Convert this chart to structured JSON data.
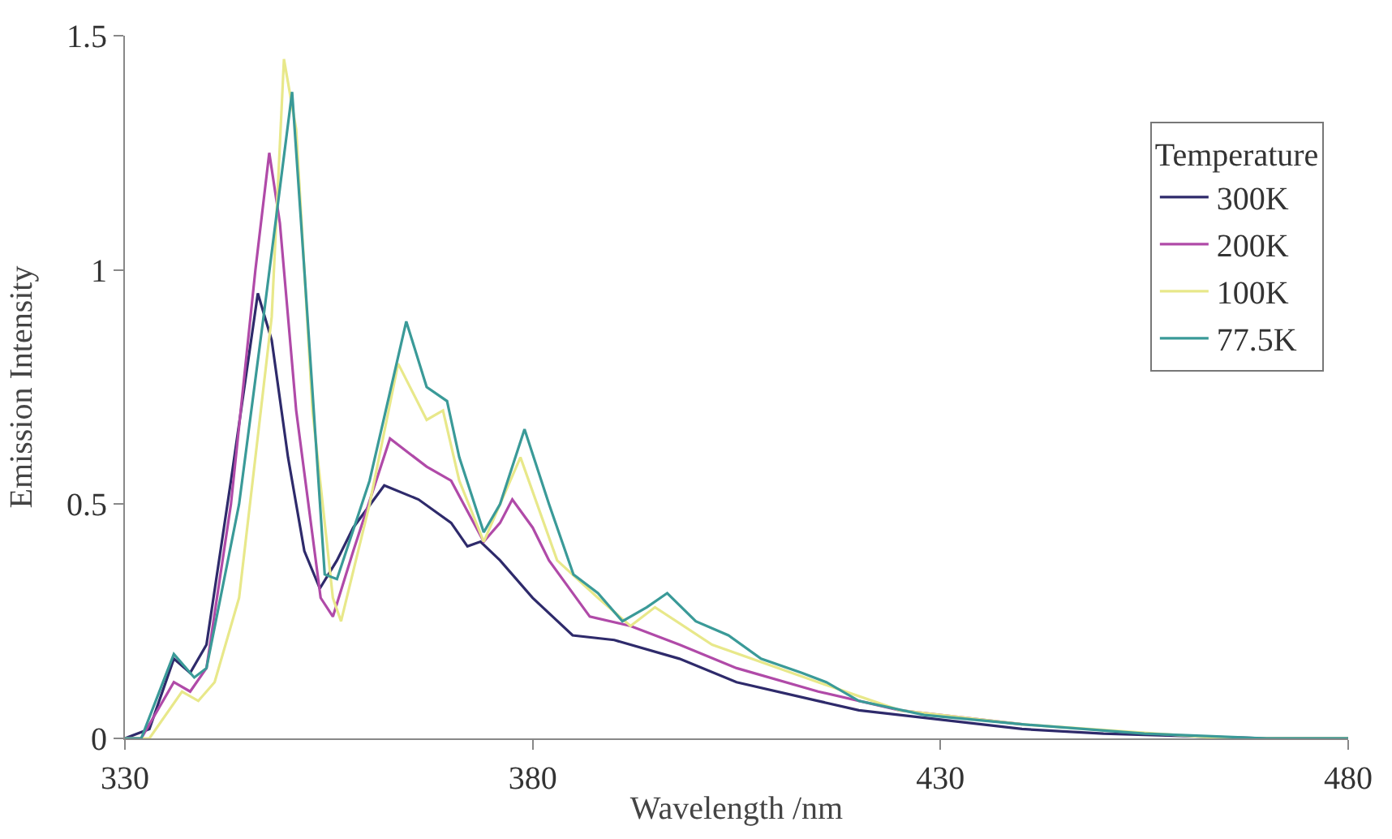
{
  "chart_data": {
    "type": "line",
    "xlabel": "Wavelength /nm",
    "ylabel": "Emission Intensity",
    "legend_title": "Temperature",
    "xlim": [
      330,
      480
    ],
    "ylim": [
      0,
      1.5
    ],
    "xticks": [
      330,
      380,
      430,
      480
    ],
    "yticks": [
      0,
      0.5,
      1,
      1.5
    ],
    "legend": "right",
    "marker": "none",
    "line_style": "solid",
    "series": [
      {
        "name": "300K",
        "color": "#2e2a6b",
        "x": [
          330,
          333,
          336,
          338,
          340,
          343,
          346.3,
          348,
          350,
          352,
          353.9,
          356,
          358,
          361.8,
          366,
          370,
          372,
          373.6,
          376,
          380,
          384.9,
          390,
          398,
          405,
          415,
          420,
          430,
          440,
          450,
          470,
          480
        ],
        "values": [
          0,
          0.02,
          0.17,
          0.14,
          0.2,
          0.55,
          0.95,
          0.85,
          0.6,
          0.4,
          0.32,
          0.38,
          0.45,
          0.54,
          0.51,
          0.46,
          0.41,
          0.42,
          0.38,
          0.3,
          0.22,
          0.21,
          0.17,
          0.12,
          0.08,
          0.06,
          0.04,
          0.02,
          0.01,
          0,
          0
        ]
      },
      {
        "name": "200K",
        "color": "#b04aa8",
        "x": [
          330,
          332,
          336,
          338,
          340,
          343,
          346,
          347.7,
          349,
          351,
          354,
          355.5,
          358,
          362.5,
          367,
          370,
          374,
          376,
          377.5,
          380,
          382,
          387,
          392,
          398,
          405,
          415,
          425,
          440
        ],
        "values": [
          0,
          0,
          0.12,
          0.1,
          0.15,
          0.5,
          1.0,
          1.25,
          1.1,
          0.7,
          0.3,
          0.26,
          0.4,
          0.64,
          0.58,
          0.55,
          0.42,
          0.46,
          0.51,
          0.45,
          0.38,
          0.26,
          0.24,
          0.2,
          0.15,
          0.1,
          0.06,
          0.03
        ]
      },
      {
        "name": "100K",
        "color": "#e8e88a",
        "x": [
          330,
          333,
          337,
          339,
          341,
          344,
          348,
          349.5,
          351,
          353,
          355.5,
          356.5,
          360,
          363.5,
          367,
          369,
          371,
          374,
          378.5,
          383,
          388,
          392,
          395,
          402,
          415,
          425,
          440,
          465,
          480
        ],
        "values": [
          0,
          0,
          0.1,
          0.08,
          0.12,
          0.3,
          0.9,
          1.45,
          1.3,
          0.7,
          0.3,
          0.25,
          0.5,
          0.8,
          0.68,
          0.7,
          0.55,
          0.42,
          0.6,
          0.38,
          0.3,
          0.24,
          0.28,
          0.2,
          0.12,
          0.06,
          0.03,
          0,
          0
        ]
      },
      {
        "name": "77.5K",
        "color": "#3a9a98",
        "x": [
          330,
          332,
          336,
          338.5,
          340,
          344,
          347,
          350.5,
          352,
          354.5,
          356,
          360,
          364.5,
          367,
          369.5,
          371,
          374,
          376,
          379,
          382,
          385,
          388,
          391,
          394,
          396.5,
          400,
          404,
          408,
          413,
          416,
          420,
          428,
          440,
          455,
          470,
          480
        ],
        "values": [
          0,
          0,
          0.18,
          0.13,
          0.15,
          0.5,
          0.9,
          1.38,
          1.0,
          0.35,
          0.34,
          0.55,
          0.89,
          0.75,
          0.72,
          0.6,
          0.44,
          0.5,
          0.66,
          0.5,
          0.35,
          0.31,
          0.25,
          0.28,
          0.31,
          0.25,
          0.22,
          0.17,
          0.14,
          0.12,
          0.08,
          0.05,
          0.03,
          0.01,
          0,
          0
        ]
      }
    ]
  }
}
